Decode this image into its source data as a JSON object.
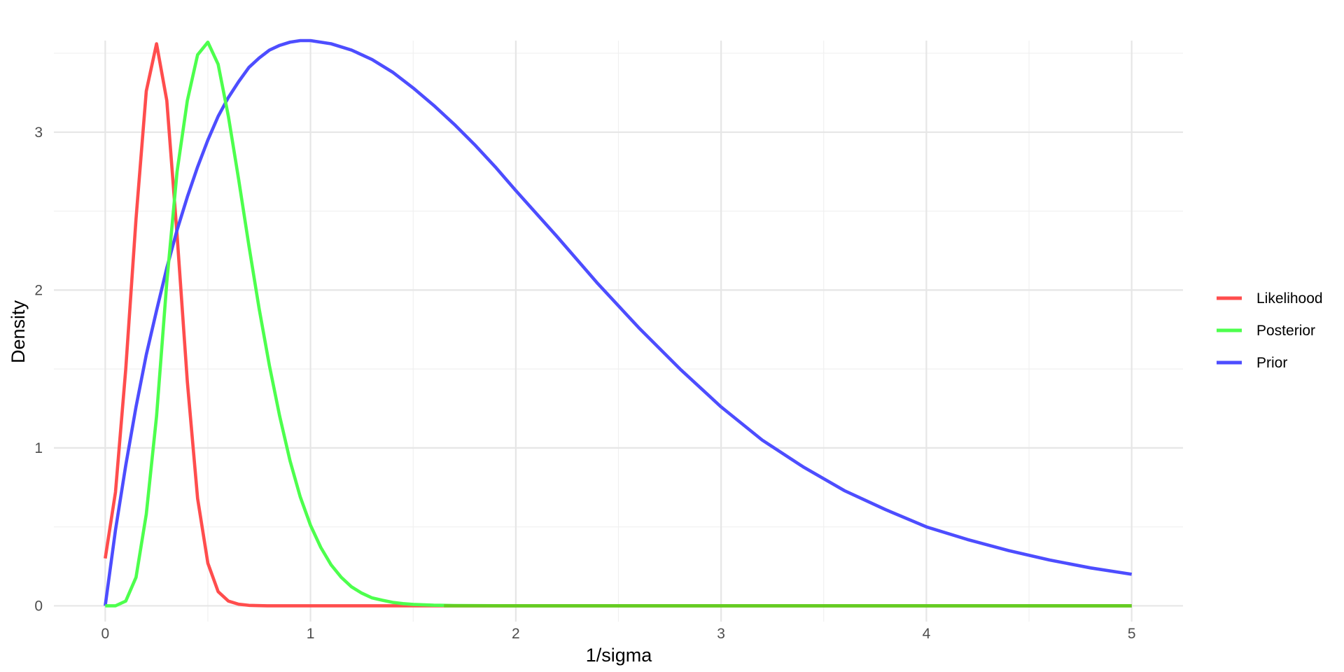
{
  "chart_data": {
    "type": "line",
    "title": "",
    "xlabel": "1/sigma",
    "ylabel": "Density",
    "xlim": [
      -0.25,
      5.25
    ],
    "ylim": [
      -0.1,
      3.58
    ],
    "x_ticks": [
      0,
      1,
      2,
      3,
      4,
      5
    ],
    "x_tick_labels": [
      "0",
      "1",
      "2",
      "3",
      "4",
      "5"
    ],
    "y_ticks": [
      0,
      1,
      2,
      3
    ],
    "y_tick_labels": [
      "0",
      "1",
      "2",
      "3"
    ],
    "x_minor_ticks": [
      0.5,
      1.5,
      2.5,
      3.5,
      4.5
    ],
    "y_minor_ticks": [
      0.5,
      1.5,
      2.5,
      3.5
    ],
    "grid": true,
    "legend_position": "right",
    "series": [
      {
        "name": "Likelihood",
        "color": "#FF4D4D",
        "x": [
          0,
          0.05,
          0.1,
          0.15,
          0.2,
          0.25,
          0.3,
          0.35,
          0.4,
          0.45,
          0.5,
          0.55,
          0.6,
          0.65,
          0.7,
          0.75,
          0.8,
          0.9,
          1.0,
          1.5,
          2.0,
          3.0,
          4.0,
          5.0
        ],
        "y": [
          0.3,
          0.72,
          1.5,
          2.45,
          3.26,
          3.56,
          3.2,
          2.35,
          1.42,
          0.68,
          0.27,
          0.09,
          0.03,
          0.01,
          0.003,
          0.001,
          0,
          0,
          0,
          0,
          0,
          0,
          0,
          0
        ]
      },
      {
        "name": "Posterior",
        "color": "#4DFF4D",
        "x": [
          0,
          0.05,
          0.1,
          0.15,
          0.2,
          0.25,
          0.3,
          0.35,
          0.4,
          0.45,
          0.5,
          0.55,
          0.6,
          0.65,
          0.7,
          0.75,
          0.8,
          0.85,
          0.9,
          0.95,
          1.0,
          1.05,
          1.1,
          1.15,
          1.2,
          1.25,
          1.3,
          1.35,
          1.4,
          1.45,
          1.5,
          1.6,
          1.7,
          1.8,
          2.0,
          2.5,
          3.0,
          4.0,
          5.0
        ],
        "y": [
          0,
          0,
          0.03,
          0.18,
          0.58,
          1.2,
          2.05,
          2.75,
          3.2,
          3.49,
          3.57,
          3.43,
          3.1,
          2.7,
          2.28,
          1.88,
          1.52,
          1.2,
          0.92,
          0.69,
          0.51,
          0.37,
          0.26,
          0.18,
          0.12,
          0.08,
          0.05,
          0.035,
          0.022,
          0.014,
          0.009,
          0.004,
          0.002,
          0.001,
          0,
          0,
          0,
          0,
          0
        ]
      },
      {
        "name": "Prior",
        "color": "#4D4DFF",
        "x": [
          0,
          0.05,
          0.1,
          0.15,
          0.2,
          0.25,
          0.3,
          0.35,
          0.4,
          0.45,
          0.5,
          0.55,
          0.6,
          0.65,
          0.7,
          0.75,
          0.8,
          0.85,
          0.9,
          0.95,
          1.0,
          1.1,
          1.2,
          1.3,
          1.4,
          1.5,
          1.6,
          1.7,
          1.8,
          1.9,
          2.0,
          2.2,
          2.4,
          2.6,
          2.8,
          3.0,
          3.2,
          3.4,
          3.6,
          3.8,
          4.0,
          4.2,
          4.4,
          4.6,
          4.8,
          5.0
        ],
        "y": [
          0,
          0.48,
          0.89,
          1.26,
          1.59,
          1.87,
          2.14,
          2.38,
          2.59,
          2.78,
          2.95,
          3.1,
          3.22,
          3.32,
          3.41,
          3.47,
          3.52,
          3.55,
          3.57,
          3.58,
          3.58,
          3.56,
          3.52,
          3.46,
          3.38,
          3.28,
          3.17,
          3.05,
          2.92,
          2.78,
          2.63,
          2.34,
          2.04,
          1.76,
          1.5,
          1.26,
          1.05,
          0.88,
          0.73,
          0.61,
          0.5,
          0.42,
          0.35,
          0.29,
          0.24,
          0.2
        ]
      }
    ]
  }
}
